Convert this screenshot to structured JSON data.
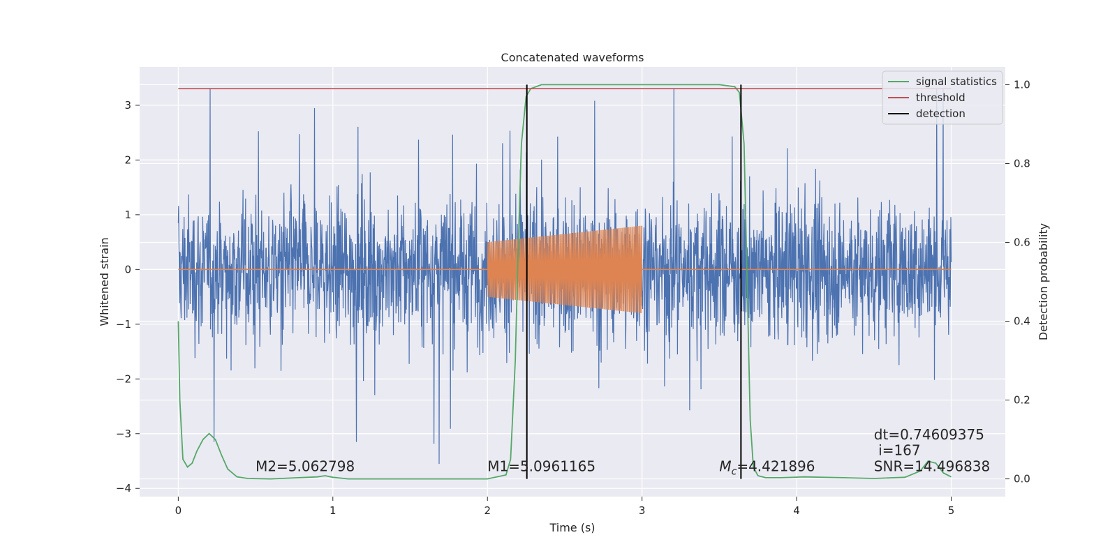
{
  "chart_data": {
    "type": "line",
    "title": "Concatenated waveforms",
    "xlabel": "Time (s)",
    "ylabel_left": "Whitened strain",
    "ylabel_right": "Detection probability",
    "xlim": [
      -0.25,
      5.35
    ],
    "ylim_left": [
      -4.15,
      3.7
    ],
    "ylim_right": [
      -0.045,
      1.045
    ],
    "xticks": [
      0,
      1,
      2,
      3,
      4,
      5
    ],
    "xtick_labels": [
      "0",
      "1",
      "2",
      "3",
      "4",
      "5"
    ],
    "yticks_left": [
      -4,
      -3,
      -2,
      -1,
      0,
      1,
      2,
      3
    ],
    "ytick_labels_left": [
      "−4",
      "−3",
      "−2",
      "−1",
      "0",
      "1",
      "2",
      "3"
    ],
    "yticks_right": [
      0.0,
      0.2,
      0.4,
      0.6,
      0.8,
      1.0
    ],
    "ytick_labels_right": [
      "0.0",
      "0.2",
      "0.4",
      "0.6",
      "0.8",
      "1.0"
    ],
    "grid": true,
    "legend_position": "top-right",
    "legend": [
      {
        "label": "signal statistics",
        "color": "#55a868"
      },
      {
        "label": "threshold",
        "color": "#c44e52"
      },
      {
        "label": "detection",
        "color": "#000000"
      }
    ],
    "colors": {
      "strain": "#4c72b0",
      "injected": "#dd8452",
      "signal_statistics": "#55a868",
      "threshold": "#c44e52",
      "detection": "#000000",
      "background": "#eaeaf2",
      "grid": "#ffffff"
    },
    "series": [
      {
        "name": "signal statistics",
        "axis": "right",
        "x": [
          0,
          0.01,
          0.03,
          0.06,
          0.09,
          0.12,
          0.16,
          0.2,
          0.24,
          0.28,
          0.32,
          0.38,
          0.45,
          0.6,
          0.9,
          0.95,
          1.0,
          1.1,
          1.5,
          2.0,
          2.12,
          2.15,
          2.18,
          2.2,
          2.22,
          2.25,
          2.28,
          2.35,
          2.5,
          3.0,
          3.5,
          3.6,
          3.63,
          3.66,
          3.68,
          3.7,
          3.72,
          3.75,
          3.8,
          3.9,
          4.05,
          4.3,
          4.5,
          4.7,
          4.8,
          4.85,
          4.9,
          4.95,
          5.0
        ],
        "y": [
          0.4,
          0.2,
          0.05,
          0.03,
          0.04,
          0.07,
          0.1,
          0.115,
          0.1,
          0.06,
          0.025,
          0.005,
          0.001,
          0.0,
          0.005,
          0.008,
          0.004,
          0.0,
          0.0,
          0.0,
          0.01,
          0.05,
          0.3,
          0.6,
          0.85,
          0.97,
          0.99,
          1.0,
          1.0,
          1.0,
          1.0,
          0.995,
          0.98,
          0.85,
          0.5,
          0.15,
          0.03,
          0.008,
          0.003,
          0.003,
          0.005,
          0.003,
          0.001,
          0.004,
          0.02,
          0.045,
          0.04,
          0.015,
          0.005
        ]
      },
      {
        "name": "threshold",
        "axis": "right",
        "x": [
          0,
          5
        ],
        "y": [
          0.99,
          0.99
        ]
      },
      {
        "name": "detection",
        "axis": "right",
        "x": [
          2.255,
          3.64
        ],
        "y_range": [
          0.0,
          1.0
        ]
      }
    ],
    "strain_noise": {
      "x_range": [
        0,
        5
      ],
      "amplitude_typical": 1.0,
      "peak": 3.3,
      "trough": -3.8
    },
    "injected_waveform": {
      "x_range": [
        2.0,
        3.0
      ],
      "amplitude_start": 0.5,
      "amplitude_end": 0.8,
      "baseline_x": [
        0,
        5
      ],
      "baseline_y": 0
    },
    "annotations": [
      {
        "text": "M2=5.062798",
        "x": 0.5,
        "y_right": 0.02
      },
      {
        "text": "M1=5.0961165",
        "x": 2.0,
        "y_right": 0.02
      },
      {
        "text": "M_c=4.421896",
        "x": 3.5,
        "y_right": 0.02,
        "math": true
      },
      {
        "text": "dt=0.74609375",
        "x": 4.5,
        "y_right": 0.1
      },
      {
        "text": " i=167",
        "x": 4.5,
        "y_right": 0.06
      },
      {
        "text": "SNR=14.496838",
        "x": 4.5,
        "y_right": 0.02
      }
    ]
  }
}
